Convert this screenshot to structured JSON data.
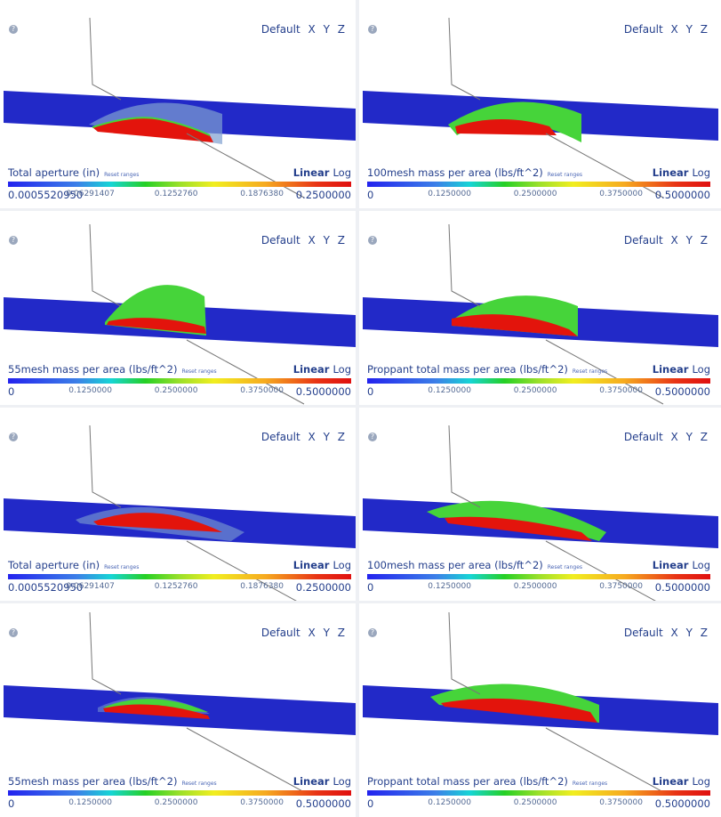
{
  "help_icon": "question-icon",
  "view_buttons": [
    "Default",
    "X",
    "Y",
    "Z"
  ],
  "reset_label": "Reset ranges",
  "linear_label": "Linear",
  "log_label": "Log",
  "colors": {
    "plane": "#2229c8",
    "green": "#46d43a",
    "red": "#e3140c",
    "text": "#243f8c",
    "haze": "#7fa0d0"
  },
  "panels": [
    {
      "title": "Total aperture (in)",
      "ticks": [
        "0.0005520950",
        "0.06291407",
        "0.1252760",
        "0.1876380",
        "0.2500000"
      ]
    },
    {
      "title": "100mesh mass per area (lbs/ft^2)",
      "ticks": [
        "0",
        "0.1250000",
        "0.2500000",
        "0.3750000",
        "0.5000000"
      ]
    },
    {
      "title": "55mesh mass per area (lbs/ft^2)",
      "ticks": [
        "0",
        "0.1250000",
        "0.2500000",
        "0.3750000",
        "0.5000000"
      ]
    },
    {
      "title": "Proppant total mass per area (lbs/ft^2)",
      "ticks": [
        "0",
        "0.1250000",
        "0.2500000",
        "0.3750000",
        "0.5000000"
      ]
    },
    {
      "title": "Total aperture (in)",
      "ticks": [
        "0.0005520950",
        "0.06291407",
        "0.1252760",
        "0.1876380",
        "0.2500000"
      ]
    },
    {
      "title": "100mesh mass per area (lbs/ft^2)",
      "ticks": [
        "0",
        "0.1250000",
        "0.2500000",
        "0.3750000",
        "0.5000000"
      ]
    },
    {
      "title": "55mesh mass per area (lbs/ft^2)",
      "ticks": [
        "0",
        "0.1250000",
        "0.2500000",
        "0.3750000",
        "0.5000000"
      ]
    },
    {
      "title": "Proppant total mass per area (lbs/ft^2)",
      "ticks": [
        "0",
        "0.1250000",
        "0.2500000",
        "0.3750000",
        "0.5000000"
      ]
    }
  ]
}
